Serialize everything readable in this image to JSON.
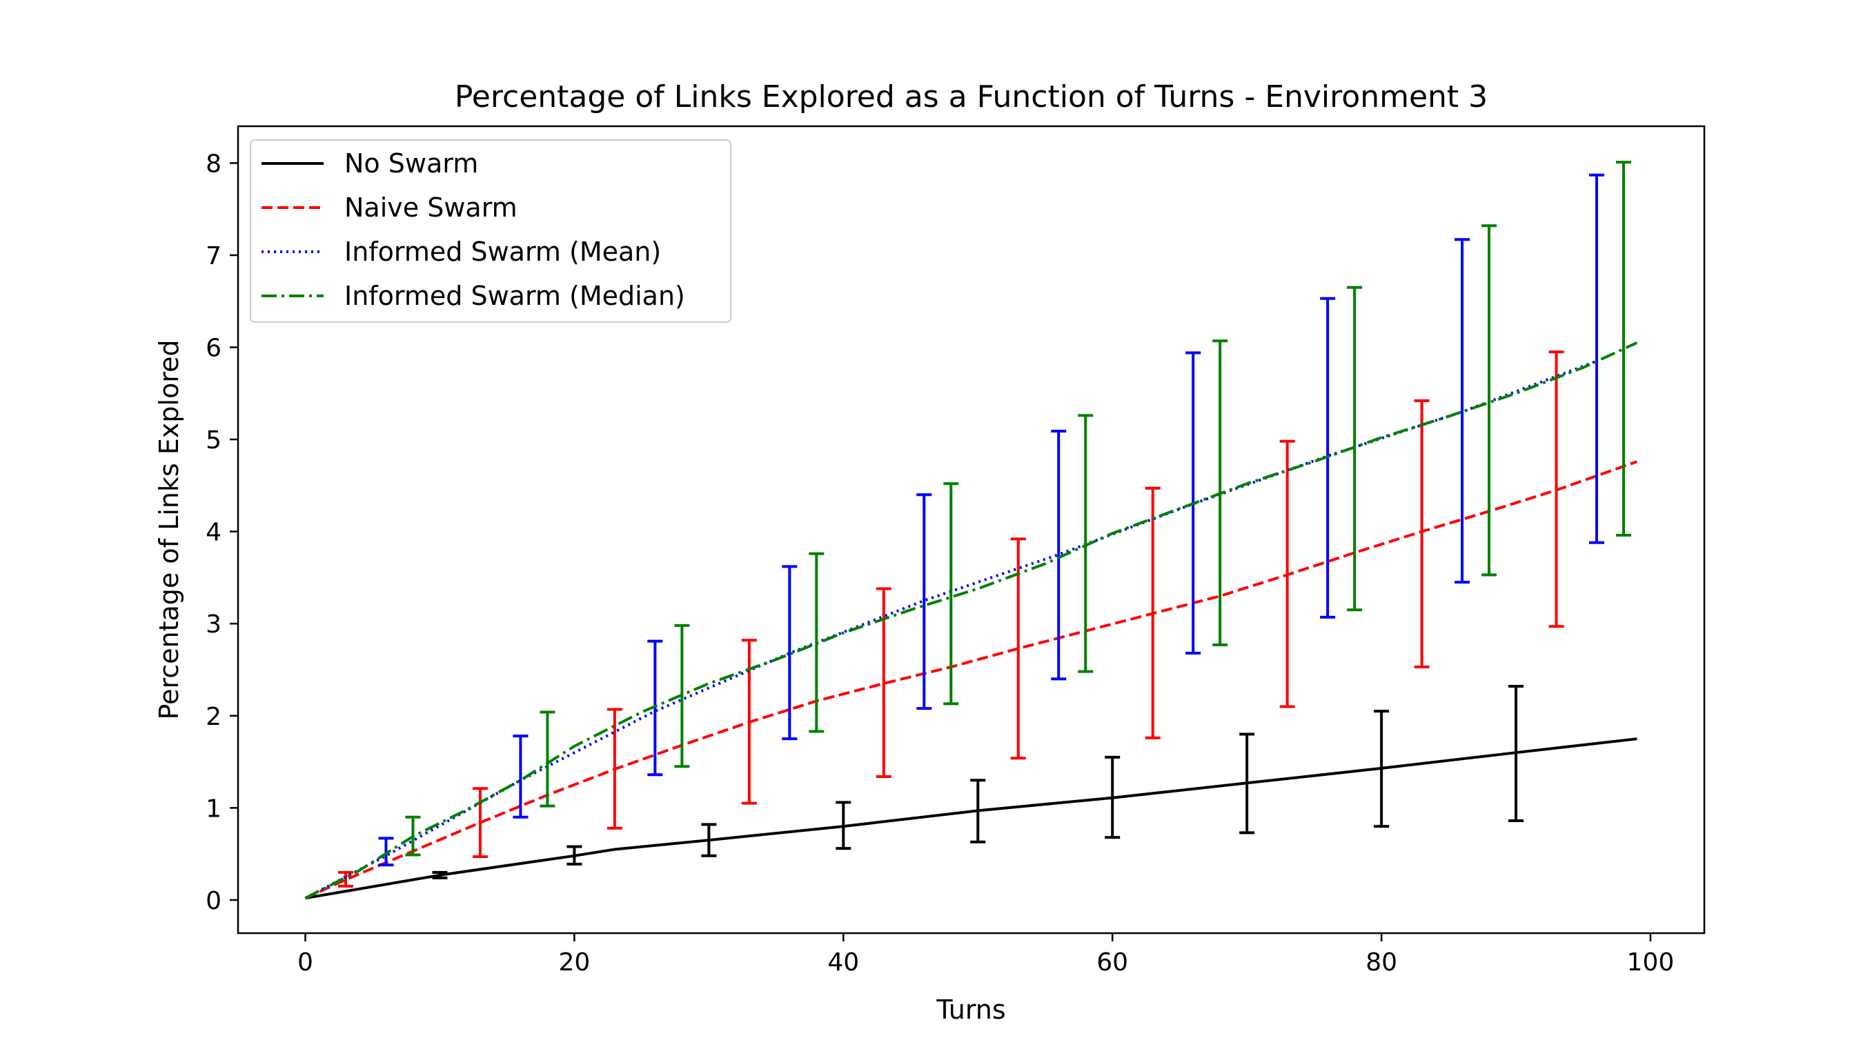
{
  "chart_data": {
    "type": "line",
    "title": "Percentage of Links Explored as a Function of Turns - Environment 3",
    "xlabel": "Turns",
    "ylabel": "Percentage of Links Explored",
    "xlim": [
      -5,
      104
    ],
    "ylim": [
      -0.36,
      8.4
    ],
    "xticks": [
      0,
      20,
      40,
      60,
      80,
      100
    ],
    "yticks": [
      0,
      1,
      2,
      3,
      4,
      5,
      6,
      7,
      8
    ],
    "grid": false,
    "legend_position": "top-left",
    "series": [
      {
        "name": "No Swarm",
        "color": "#000000",
        "style": "solid",
        "x": [
          0,
          10,
          20,
          23,
          30,
          40,
          50,
          60,
          70,
          80,
          90,
          99
        ],
        "y": [
          0.02,
          0.27,
          0.48,
          0.55,
          0.65,
          0.8,
          0.97,
          1.11,
          1.27,
          1.43,
          1.6,
          1.75
        ],
        "errorbars": [
          {
            "x": 10,
            "low": 0.24,
            "high": 0.3
          },
          {
            "x": 20,
            "low": 0.39,
            "high": 0.58
          },
          {
            "x": 30,
            "low": 0.48,
            "high": 0.82
          },
          {
            "x": 40,
            "low": 0.56,
            "high": 1.06
          },
          {
            "x": 50,
            "low": 0.63,
            "high": 1.3
          },
          {
            "x": 60,
            "low": 0.68,
            "high": 1.55
          },
          {
            "x": 70,
            "low": 0.73,
            "high": 1.8
          },
          {
            "x": 80,
            "low": 0.8,
            "high": 2.05
          },
          {
            "x": 90,
            "low": 0.86,
            "high": 2.32
          }
        ]
      },
      {
        "name": "Naive Swarm",
        "color": "#ff0000",
        "style": "dashed",
        "x": [
          0,
          3,
          8,
          13,
          18,
          23,
          28,
          33,
          38,
          43,
          48,
          53,
          58,
          63,
          68,
          73,
          78,
          83,
          88,
          93,
          99
        ],
        "y": [
          0.02,
          0.22,
          0.53,
          0.84,
          1.14,
          1.42,
          1.68,
          1.93,
          2.16,
          2.35,
          2.53,
          2.73,
          2.92,
          3.11,
          3.3,
          3.53,
          3.77,
          4.0,
          4.22,
          4.45,
          4.76
        ],
        "errorbars": [
          {
            "x": 3,
            "low": 0.15,
            "high": 0.3
          },
          {
            "x": 13,
            "low": 0.47,
            "high": 1.21
          },
          {
            "x": 23,
            "low": 0.78,
            "high": 2.07
          },
          {
            "x": 33,
            "low": 1.05,
            "high": 2.82
          },
          {
            "x": 43,
            "low": 1.34,
            "high": 3.38
          },
          {
            "x": 53,
            "low": 1.54,
            "high": 3.92
          },
          {
            "x": 63,
            "low": 1.76,
            "high": 4.47
          },
          {
            "x": 73,
            "low": 2.1,
            "high": 4.98
          },
          {
            "x": 83,
            "low": 2.53,
            "high": 5.42
          },
          {
            "x": 93,
            "low": 2.97,
            "high": 5.95
          }
        ]
      },
      {
        "name": "Informed Swarm (Mean)",
        "color": "#0000ff",
        "style": "dotted",
        "x": [
          0,
          6,
          16,
          26,
          36,
          46,
          56,
          66,
          76,
          86,
          96
        ],
        "y": [
          0.02,
          0.48,
          1.3,
          2.05,
          2.68,
          3.25,
          3.75,
          4.3,
          4.82,
          5.3,
          5.85
        ],
        "errorbars": [
          {
            "x": 6,
            "low": 0.38,
            "high": 0.67
          },
          {
            "x": 16,
            "low": 0.9,
            "high": 1.78
          },
          {
            "x": 26,
            "low": 1.36,
            "high": 2.81
          },
          {
            "x": 36,
            "low": 1.75,
            "high": 3.62
          },
          {
            "x": 46,
            "low": 2.08,
            "high": 4.4
          },
          {
            "x": 56,
            "low": 2.4,
            "high": 5.09
          },
          {
            "x": 66,
            "low": 2.68,
            "high": 5.94
          },
          {
            "x": 76,
            "low": 3.07,
            "high": 6.53
          },
          {
            "x": 86,
            "low": 3.45,
            "high": 7.17
          },
          {
            "x": 96,
            "low": 3.88,
            "high": 7.87
          }
        ]
      },
      {
        "name": "Informed Swarm (Median)",
        "color": "#008000",
        "style": "dashdot",
        "x": [
          0,
          4,
          8,
          12,
          16,
          20,
          25,
          30,
          35,
          40,
          45,
          50,
          55,
          60,
          65,
          70,
          75,
          80,
          85,
          90,
          95,
          99
        ],
        "y": [
          0.02,
          0.32,
          0.69,
          0.98,
          1.3,
          1.67,
          2.04,
          2.35,
          2.61,
          2.9,
          3.15,
          3.38,
          3.65,
          3.98,
          4.25,
          4.52,
          4.76,
          5.02,
          5.25,
          5.5,
          5.78,
          6.05
        ],
        "errorbars": [
          {
            "x": 8,
            "low": 0.49,
            "high": 0.9
          },
          {
            "x": 18,
            "low": 1.02,
            "high": 2.04
          },
          {
            "x": 28,
            "low": 1.45,
            "high": 2.98
          },
          {
            "x": 38,
            "low": 1.83,
            "high": 3.76
          },
          {
            "x": 48,
            "low": 2.13,
            "high": 4.52
          },
          {
            "x": 58,
            "low": 2.48,
            "high": 5.26
          },
          {
            "x": 68,
            "low": 2.77,
            "high": 6.07
          },
          {
            "x": 78,
            "low": 3.15,
            "high": 6.65
          },
          {
            "x": 88,
            "low": 3.53,
            "high": 7.32
          },
          {
            "x": 98,
            "low": 3.96,
            "high": 8.01
          }
        ]
      }
    ]
  }
}
